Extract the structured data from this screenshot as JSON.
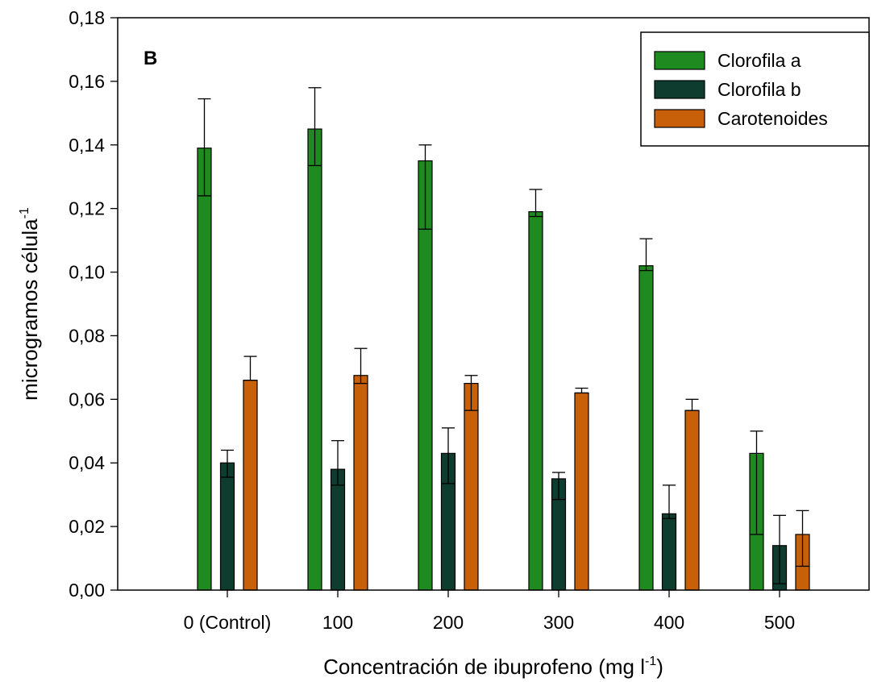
{
  "chart_data": {
    "type": "bar",
    "panel_label": "B",
    "categories": [
      "0 (Control)",
      "100",
      "200",
      "300",
      "400",
      "500"
    ],
    "series": [
      {
        "name": "Clorofila a",
        "color": "#1f8a1f",
        "values": [
          0.139,
          0.145,
          0.135,
          0.119,
          0.102,
          0.043
        ],
        "error_upper": [
          0.0155,
          0.013,
          0.005,
          0.007,
          0.0085,
          0.007
        ],
        "error_lower": [
          0.015,
          0.0115,
          0.0215,
          0.0015,
          0.0015,
          0.0255
        ]
      },
      {
        "name": "Clorofila b",
        "color": "#0e3d2f",
        "values": [
          0.04,
          0.038,
          0.043,
          0.035,
          0.024,
          0.014
        ],
        "error_upper": [
          0.004,
          0.009,
          0.008,
          0.002,
          0.009,
          0.0095
        ],
        "error_lower": [
          0.0045,
          0.005,
          0.0095,
          0.0065,
          0.0015,
          0.012
        ]
      },
      {
        "name": "Carotenoides",
        "color": "#c8600a",
        "values": [
          0.066,
          0.0675,
          0.065,
          0.062,
          0.0565,
          0.0175
        ],
        "error_upper": [
          0.0075,
          0.0085,
          0.0025,
          0.0015,
          0.0035,
          0.0075
        ],
        "error_lower": [
          0.0,
          0.0025,
          0.0085,
          0.0,
          0.0,
          0.01
        ]
      }
    ],
    "xlabel": "Concentración de ibuprofeno (mg l",
    "xlabel_sup": "-1",
    "xlabel_close": ")",
    "ylabel": "microgramos célula",
    "ylabel_sup": "-1",
    "ylim": [
      0,
      0.18
    ],
    "yticks": [
      "0,00",
      "0,02",
      "0,04",
      "0,06",
      "0,08",
      "0,10",
      "0,12",
      "0,14",
      "0,16",
      "0,18"
    ],
    "ytick_values": [
      0,
      0.02,
      0.04,
      0.06,
      0.08,
      0.1,
      0.12,
      0.14,
      0.16,
      0.18
    ],
    "legend_position": "top-right",
    "grid": false
  }
}
